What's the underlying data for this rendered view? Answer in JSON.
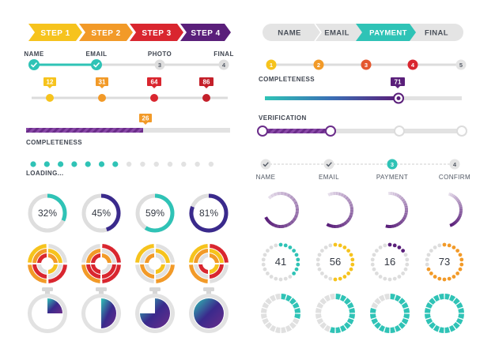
{
  "left": {
    "steps": [
      {
        "label": "STEP 1",
        "color": "#f6c31d"
      },
      {
        "label": "STEP 2",
        "color": "#f29a28"
      },
      {
        "label": "STEP 3",
        "color": "#d9262f"
      },
      {
        "label": "STEP 4",
        "color": "#5a1f7a"
      }
    ],
    "form_progress": {
      "labels": [
        "NAME",
        "EMAIL",
        "PHOTO",
        "FINAL"
      ],
      "numbers": [
        "3",
        "4"
      ],
      "accent": "#2fc3b6"
    },
    "value_markers": [
      {
        "value": "12",
        "color": "#f6c31d"
      },
      {
        "value": "31",
        "color": "#f29a28"
      },
      {
        "value": "64",
        "color": "#d9262f"
      },
      {
        "value": "86",
        "color": "#c4202a"
      }
    ],
    "completeness": {
      "value": "26",
      "fraction": 0.26,
      "label": "COMPLETENESS",
      "color": "#6b2d8a",
      "tag_color": "#f29a28"
    },
    "loading": {
      "label": "LOADING...",
      "dots_total": 14,
      "dots_filled": 7,
      "color": "#2fc3b6"
    },
    "rings": [
      {
        "pct": "32%",
        "value": 32,
        "color": "#2fc3b6"
      },
      {
        "pct": "45%",
        "value": 45,
        "color": "#3a2a8c"
      },
      {
        "pct": "59%",
        "value": 59,
        "color": "#2fc3b6"
      },
      {
        "pct": "81%",
        "value": 81,
        "color": "#3a2a8c"
      }
    ],
    "timers": [
      {
        "value": 0.25
      },
      {
        "value": 0.5
      },
      {
        "value": 0.75
      },
      {
        "value": 1.0
      }
    ]
  },
  "right": {
    "tabs": [
      {
        "label": "NAME",
        "active": false
      },
      {
        "label": "EMAIL",
        "active": false
      },
      {
        "label": "PAYMENT",
        "active": true
      },
      {
        "label": "FINAL",
        "active": false
      }
    ],
    "tab_accent": "#2fc3b6",
    "colored_steps": {
      "numbers": [
        "1",
        "2",
        "3",
        "4",
        "5"
      ],
      "colors": [
        "#f6c31d",
        "#f29a28",
        "#e4572e",
        "#d9262f",
        "#d9d9d9"
      ],
      "label": "COMPLETENESS"
    },
    "gradient_bar": {
      "value": "71",
      "fraction": 0.71,
      "tag_color": "#5a1f7a"
    },
    "verification": {
      "label": "VERIFICATION",
      "fraction": 0.3,
      "color": "#6b2d8a"
    },
    "checkout": {
      "labels": [
        "NAME",
        "EMAIL",
        "PAYMENT",
        "CONFIRM"
      ],
      "numbers": [
        "3",
        "4"
      ],
      "accent": "#2fc3b6"
    },
    "arcs": [
      {
        "value": 0.8
      },
      {
        "value": 0.65
      },
      {
        "value": 0.55
      },
      {
        "value": 0.4
      }
    ],
    "dot_counters": [
      {
        "value": "41",
        "color": "#2fc3b6"
      },
      {
        "value": "56",
        "color": "#f6c31d"
      },
      {
        "value": "16",
        "color": "#5a1f7a"
      },
      {
        "value": "73",
        "color": "#f29a28"
      }
    ],
    "segment_rings": [
      {
        "value": 0.3
      },
      {
        "value": 0.55
      },
      {
        "value": 0.8
      },
      {
        "value": 1.0
      }
    ]
  }
}
